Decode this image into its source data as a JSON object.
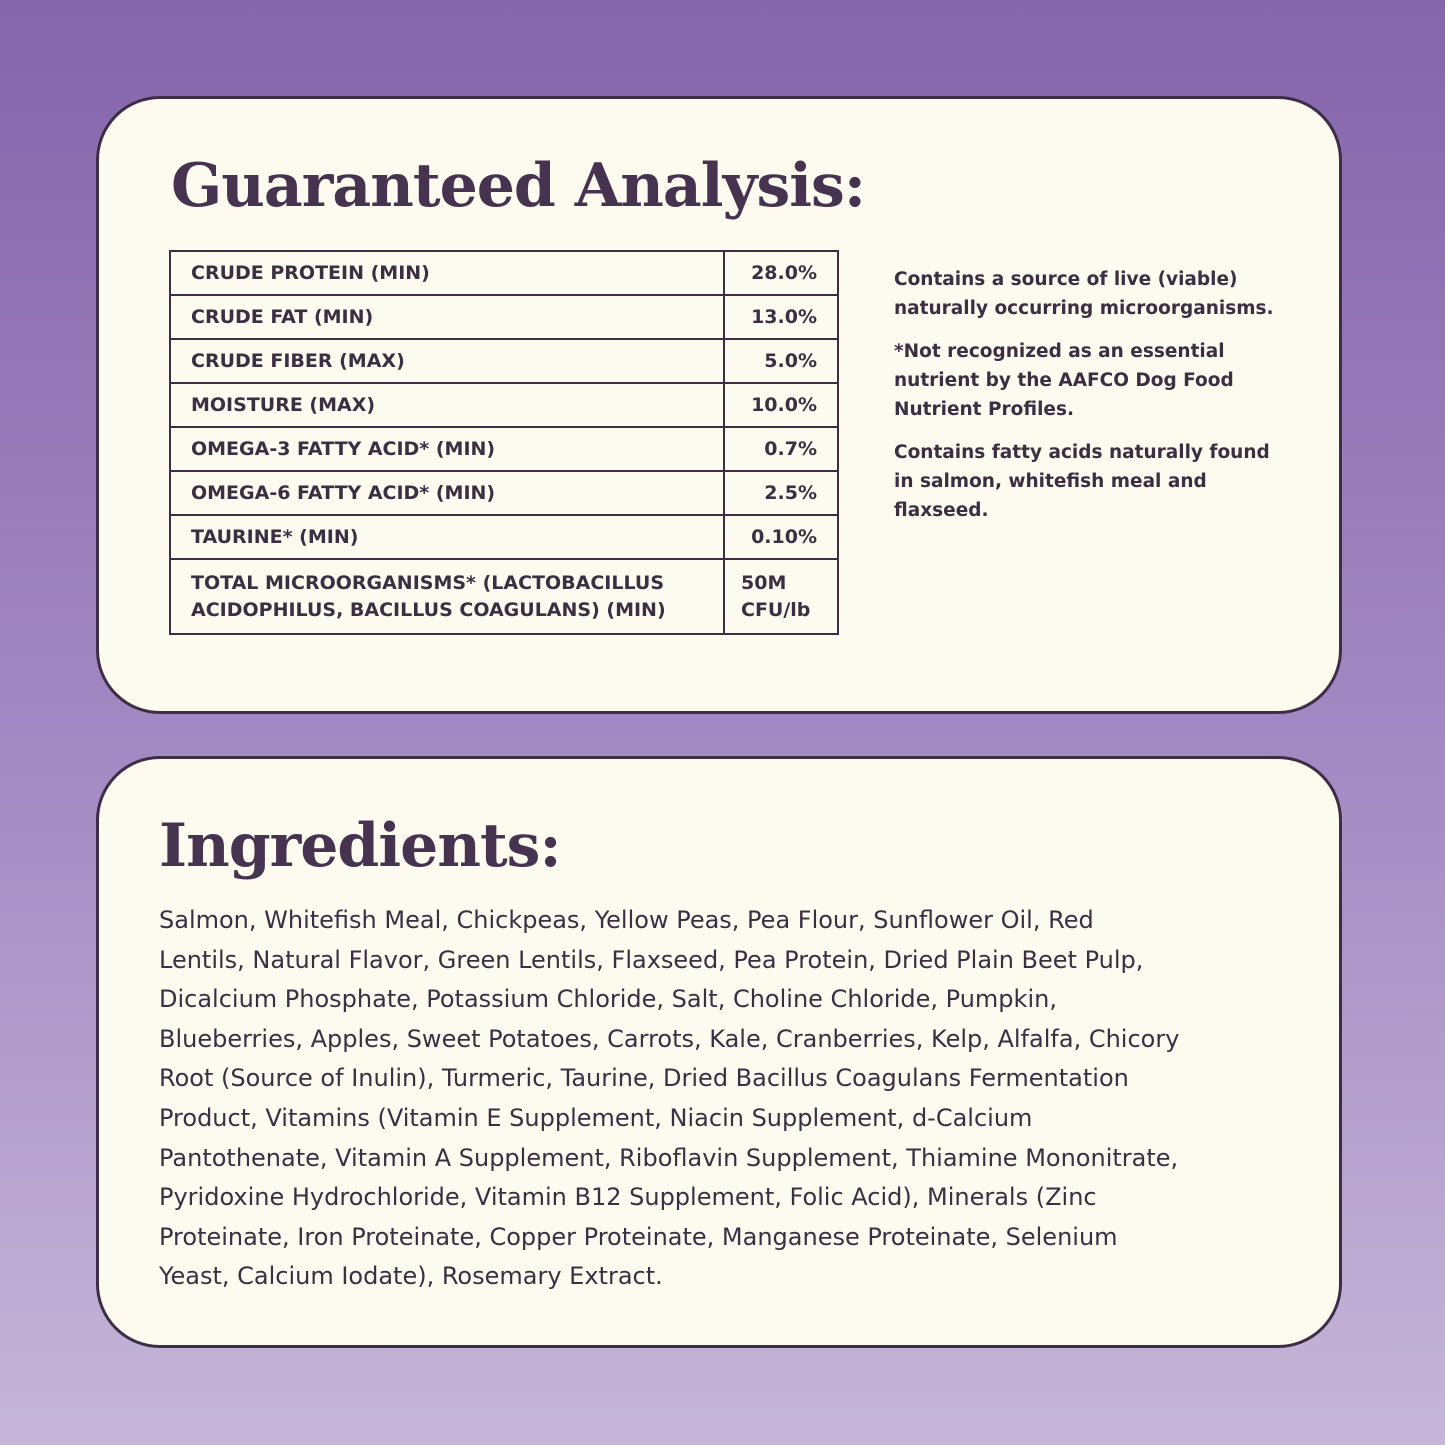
{
  "colors": {
    "background_top": "#8565ab",
    "background_bottom": "#c6b6d8",
    "card": "#fdfaf0",
    "text": "#3b2f42"
  },
  "analysis": {
    "title": "Guaranteed Analysis:",
    "rows": [
      {
        "label": "CRUDE PROTEIN (MIN)",
        "value": "28.0%"
      },
      {
        "label": "CRUDE FAT (MIN)",
        "value": "13.0%"
      },
      {
        "label": "CRUDE FIBER (MAX)",
        "value": "5.0%"
      },
      {
        "label": "MOISTURE (MAX)",
        "value": "10.0%"
      },
      {
        "label": "OMEGA-3 FATTY ACID* (MIN)",
        "value": "0.7%"
      },
      {
        "label": "OMEGA-6 FATTY ACID* (MIN)",
        "value": "2.5%"
      },
      {
        "label": "TAURINE* (MIN)",
        "value": "0.10%"
      },
      {
        "label_line1": "TOTAL MICROORGANISMS* (LACTOBACILLUS",
        "label_line2": "ACIDOPHILUS, BACILLUS COAGULANS) (MIN)",
        "value_line1": "50M",
        "value_line2": "CFU/lb"
      }
    ],
    "notes": [
      "Contains a source of live (viable) naturally occurring microorganisms.",
      "*Not recognized as an essential nutrient by the AAFCO Dog Food Nutrient Profiles.",
      "Contains fatty acids naturally found in salmon, whitefish meal and flaxseed."
    ]
  },
  "ingredients": {
    "title": "Ingredients:",
    "lines": [
      "Salmon, Whitefish Meal, Chickpeas, Yellow Peas, Pea Flour, Sunflower Oil, Red",
      "Lentils, Natural Flavor, Green Lentils, Flaxseed, Pea Protein, Dried Plain Beet Pulp,",
      "Dicalcium Phosphate, Potassium Chloride, Salt, Choline Chloride, Pumpkin,",
      "Blueberries, Apples, Sweet Potatoes, Carrots, Kale, Cranberries, Kelp, Alfalfa, Chicory",
      "Root (Source of Inulin), Turmeric, Taurine, Dried Bacillus Coagulans Fermentation",
      "Product, Vitamins (Vitamin E Supplement, Niacin Supplement, d-Calcium",
      "Pantothenate, Vitamin A Supplement, Riboflavin Supplement, Thiamine Mononitrate,",
      "Pyridoxine Hydrochloride, Vitamin B12 Supplement, Folic Acid), Minerals (Zinc",
      "Proteinate, Iron Proteinate, Copper Proteinate, Manganese Proteinate, Selenium",
      "Yeast, Calcium Iodate), Rosemary Extract."
    ]
  }
}
